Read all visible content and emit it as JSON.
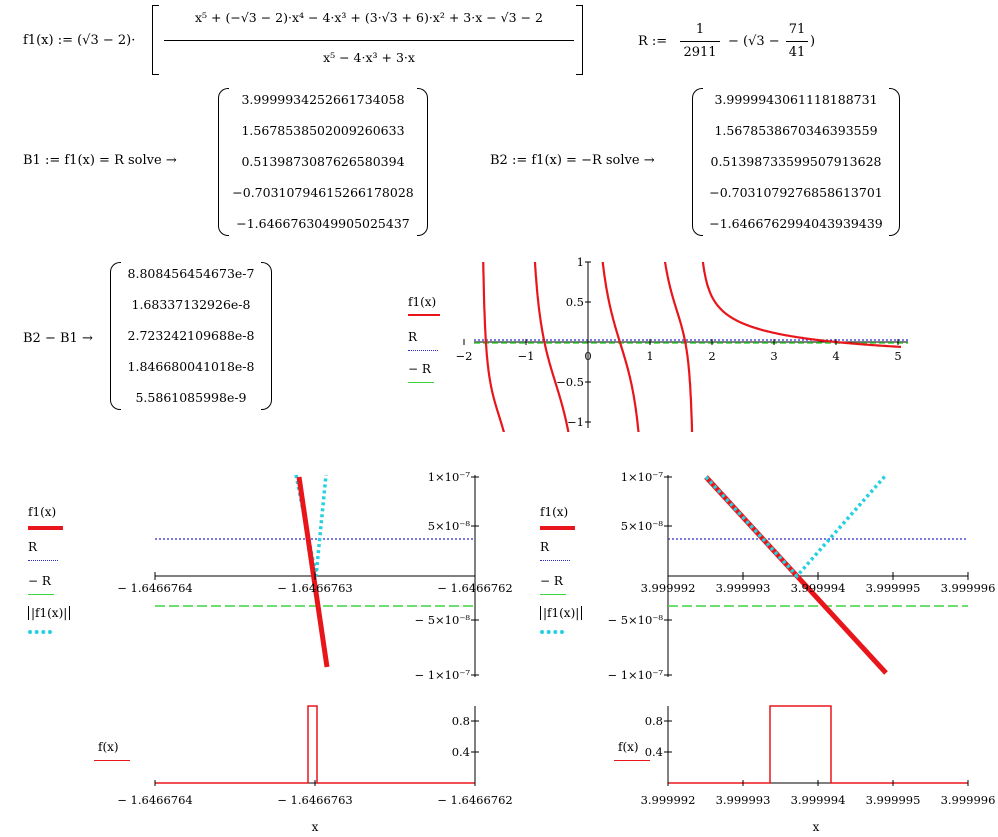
{
  "definitions": {
    "f1_lhs": "f1(x) :=",
    "f1_prefix": "(√3 − 2)·",
    "f1_numerator": "x⁵ + (−√3 − 2)·x⁴ − 4·x³ + (3·√3 + 6)·x² + 3·x − √3 − 2",
    "f1_denominator": "x⁵ − 4·x³ + 3·x",
    "R_lhs": "R :=",
    "R_frac_num": "1",
    "R_frac_den": "2911",
    "R_rest": "− (√3 − ",
    "R_inner_num": "71",
    "R_inner_den": "41",
    "R_close": ")"
  },
  "solve_b1": {
    "expr": "B1 := f1(x) = R solve →",
    "values": [
      "3.9999934252661734058",
      "1.5678538502009260633",
      "0.5139873087626580394",
      "−0.7031079461526617802​8",
      "−1.6466763049905025437"
    ]
  },
  "solve_b2": {
    "expr": "B2 := f1(x) = −R solve →",
    "values": [
      "3.9999943061118188731",
      "1.5678538670346393559",
      "0.5139873359950791362​8",
      "−0.7031079276858613701",
      "−1.6466762994043939439"
    ]
  },
  "diff": {
    "expr": "B2 − B1 →",
    "values": [
      "8.808456454673e-7",
      "1.68337132926e-8",
      "2.723242109688e-8",
      "1.846680041018e-8",
      "5.5861085998e-9"
    ]
  },
  "plot1": {
    "legend": [
      "f1(x)",
      "R",
      "− R"
    ],
    "xticks": [
      "−2",
      "−1",
      "0",
      "1",
      "2",
      "3",
      "4",
      "5"
    ],
    "yticks": [
      "1",
      "0.5",
      "−0.5",
      "−1"
    ]
  },
  "plot2": {
    "legend": [
      "f1(x)",
      "R",
      "− R",
      "|f1(x)|"
    ],
    "xticks": [
      "− 1.6466764",
      "− 1.6466763",
      "− 1.6466762"
    ],
    "yticks": [
      "1×10⁻⁷",
      "5×10⁻⁸",
      "− 5×10⁻⁸",
      "− 1×10⁻⁷"
    ]
  },
  "plot3": {
    "legend": [
      "f1(x)",
      "R",
      "− R",
      "|f1(x)|"
    ],
    "xticks": [
      "3.999992",
      "3.999993",
      "3.999994",
      "3.999995",
      "3.999996"
    ],
    "yticks": [
      "1×10⁻⁷",
      "5×10⁻⁸",
      "− 5×10⁻⁸",
      "− 1×10⁻⁷"
    ]
  },
  "plot4": {
    "legend": [
      "f(x)"
    ],
    "xticks": [
      "− 1.6466764",
      "− 1.6466763",
      "− 1.6466762"
    ],
    "yticks": [
      "0.8",
      "0.4"
    ],
    "xlabel": "x"
  },
  "plot5": {
    "legend": [
      "f(x)"
    ],
    "xticks": [
      "3.999992",
      "3.999993",
      "3.999994",
      "3.999995",
      "3.999996"
    ],
    "yticks": [
      "0.8",
      "0.4"
    ],
    "xlabel": "x"
  },
  "colors": {
    "f1": "#e8161b",
    "R": "#2b2bd0",
    "minusR": "#3fd43f",
    "abs": "#25d0e0"
  }
}
